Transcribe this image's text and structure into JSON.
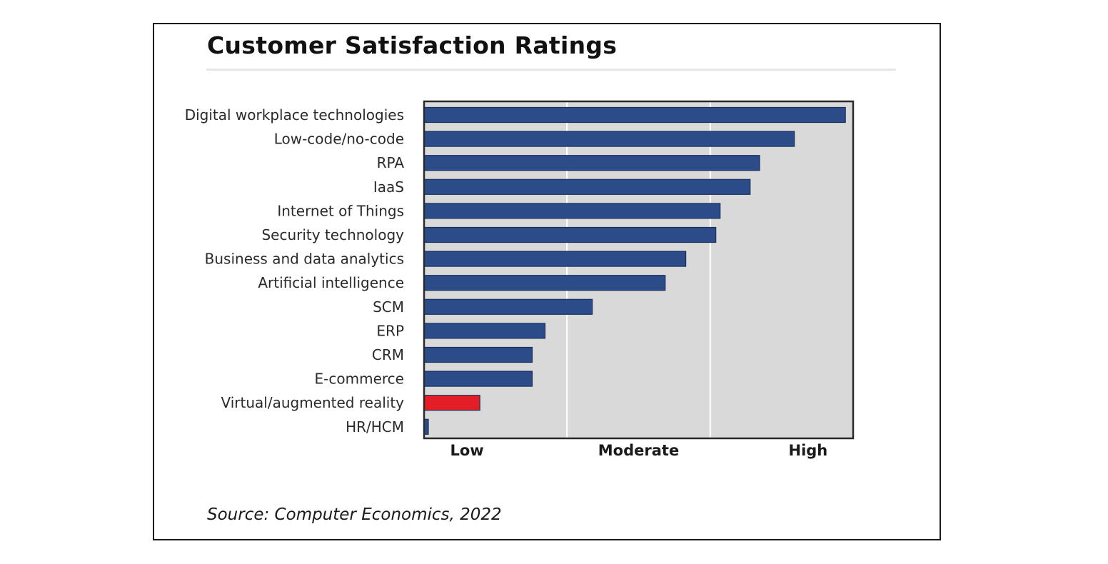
{
  "chart_data": {
    "type": "bar",
    "orientation": "horizontal",
    "title": "Customer Satisfaction Ratings",
    "source": "Source: Computer Economics, 2022",
    "categories": [
      "Digital workplace technologies",
      "Low-code/no-code",
      "RPA",
      "IaaS",
      "Internet of Things",
      "Security technology",
      "Business and data analytics",
      "Artificial intelligence",
      "SCM",
      "ERP",
      "CRM",
      "E-commerce",
      "Virtual/augmented reality",
      "HR/HCM"
    ],
    "values": [
      0.982,
      0.863,
      0.782,
      0.76,
      0.69,
      0.68,
      0.61,
      0.562,
      0.392,
      0.282,
      0.252,
      0.252,
      0.13,
      0.01
    ],
    "xlim": [
      0,
      1
    ],
    "x_ticks": [
      {
        "label": "Low",
        "value": 0.1
      },
      {
        "label": "Moderate",
        "value": 0.5
      },
      {
        "label": "High",
        "value": 0.895
      }
    ],
    "gridlines": [
      0.333,
      0.667
    ],
    "grid": true,
    "colors": {
      "bar": "#2b4c89",
      "highlight": "#e41e26",
      "plot_background": "#d9d9d9",
      "gridline": "#ffffff"
    },
    "highlight_category": "Virtual/augmented reality"
  }
}
